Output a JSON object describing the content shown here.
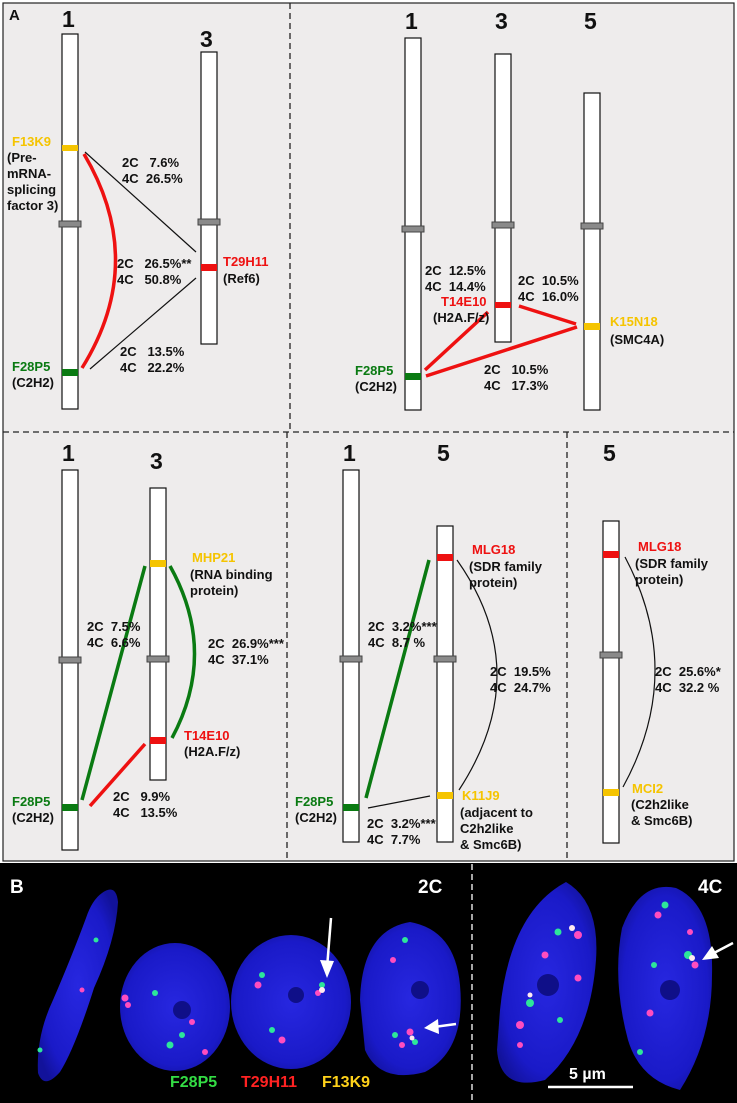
{
  "panel_a_label": "A",
  "panel_b_label": "B",
  "colors": {
    "yellow": "#f5c400",
    "red": "#ee1111",
    "green": "#0a7a12",
    "panel_bg": "#eeecec",
    "nucleus": "#1a1ac8"
  },
  "a1": {
    "chr_left": "1",
    "chr_right": "3",
    "f13k9_name": "F13K9",
    "f13k9_desc": [
      "(Pre-",
      "mRNA-",
      "splicing",
      "factor 3)"
    ],
    "t29h11_name": "T29H11",
    "t29h11_desc": "(Ref6)",
    "f28p5_name": "F28P5",
    "f28p5_desc": "(C2H2)",
    "pair1": [
      "2C   7.6%",
      "4C  26.5%"
    ],
    "pair2": [
      "2C   26.5%**",
      "4C   50.8%"
    ],
    "pair3": [
      "2C   13.5%",
      "4C   22.2%"
    ]
  },
  "a2": {
    "chr_a": "1",
    "chr_b": "3",
    "chr_c": "5",
    "f28p5_name": "F28P5",
    "f28p5_desc": "(C2H2)",
    "t14e10_name": "T14E10",
    "t14e10_desc": "(H2A.F/z)",
    "k15n18_name": "K15N18",
    "k15n18_desc": "(SMC4A)",
    "pair1": [
      "2C  12.5%",
      "4C  14.4%"
    ],
    "pair2": [
      "2C  10.5%",
      "4C  16.0%"
    ],
    "pair3": [
      "2C   10.5%",
      "4C   17.3%"
    ]
  },
  "a3": {
    "chr_left": "1",
    "chr_right": "3",
    "mhp21_name": "MHP21",
    "mhp21_desc": [
      "(RNA binding",
      "protein)"
    ],
    "t14e10_name": "T14E10",
    "t14e10_desc": "(H2A.F/z)",
    "f28p5_name": "F28P5",
    "f28p5_desc": "(C2H2)",
    "pair1": [
      "2C  7.5%",
      "4C  6.6%"
    ],
    "pair2": [
      "2C  26.9%***",
      "4C  37.1%"
    ],
    "pair3": [
      "2C   9.9%",
      "4C   13.5%"
    ]
  },
  "a4": {
    "chr_left": "1",
    "chr_right": "5",
    "mlg18_name": "MLG18",
    "mlg18_desc": [
      "(SDR family",
      "protein)"
    ],
    "k11j9_name": "K11J9",
    "k11j9_desc": [
      "(adjacent to",
      "C2h2like",
      "& Smc6B)"
    ],
    "f28p5_name": "F28P5",
    "f28p5_desc": "(C2H2)",
    "pair1": [
      "2C  3.2%***",
      "4C  8.7 %"
    ],
    "pair2": [
      "2C  19.5%",
      "4C  24.7%"
    ],
    "pair3": [
      "2C  3.2%***",
      "4C  7.7%"
    ]
  },
  "a5": {
    "chr": "5",
    "mlg18_name": "MLG18",
    "mlg18_desc": [
      "(SDR family",
      "protein)"
    ],
    "mci2_name": "MCI2",
    "mci2_desc": [
      "(C2h2like",
      "& Smc6B)"
    ],
    "pair1": [
      "2C  25.6%*",
      "4C  32.2 %"
    ]
  },
  "b": {
    "label_2c": "2C",
    "label_4c": "4C",
    "legend_f28p5": "F28P5",
    "legend_t29h11": "T29H11",
    "legend_f13k9": "F13K9",
    "scale_bar": "5 µm"
  }
}
